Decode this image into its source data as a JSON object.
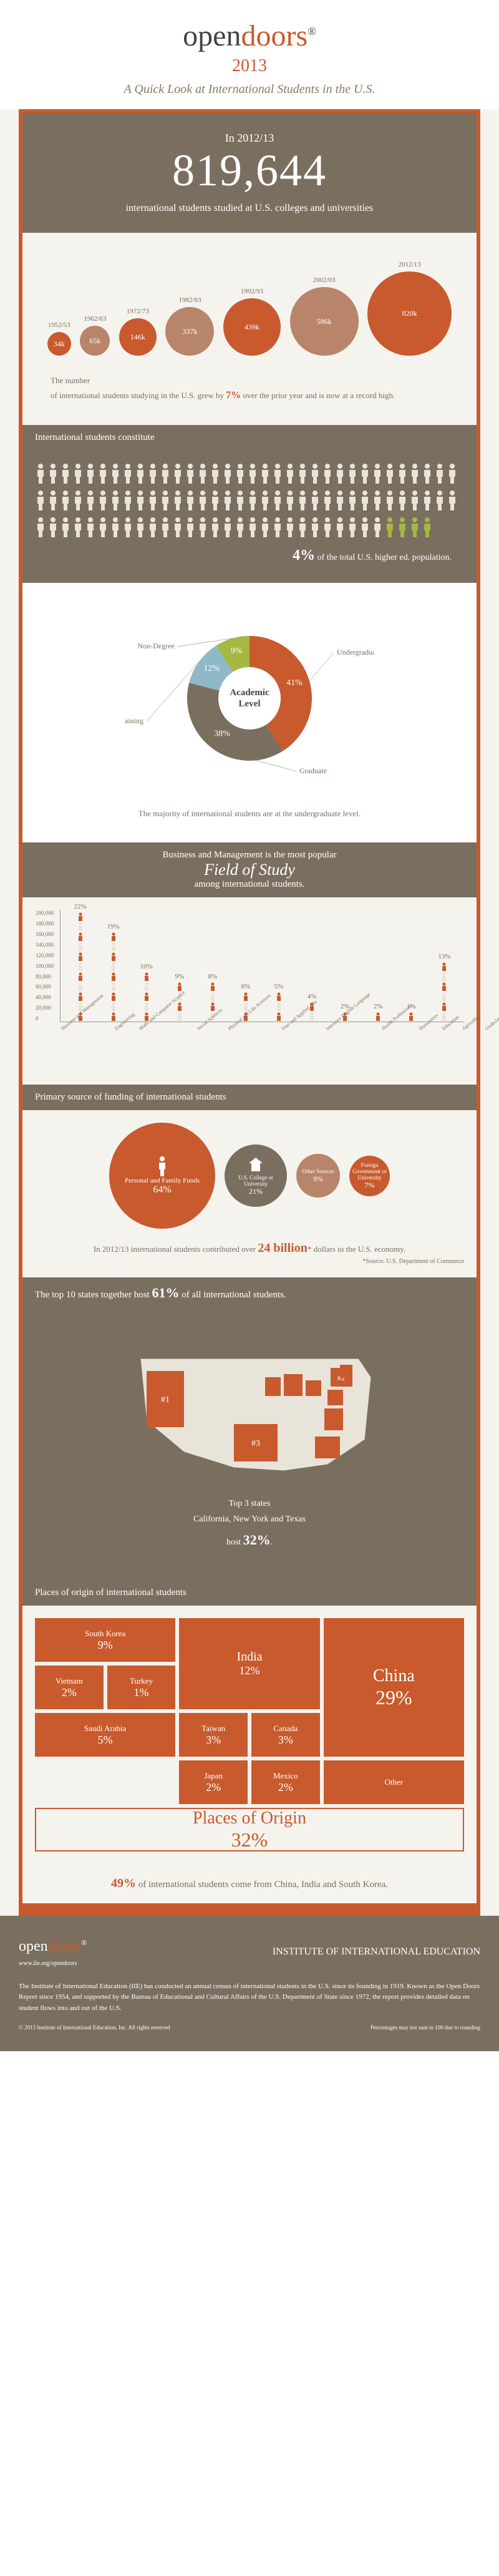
{
  "header": {
    "logo_open": "open",
    "logo_doors": "doors",
    "reg": "®",
    "year": "2013",
    "subtitle": "A Quick Look at International Students in the U.S."
  },
  "hero": {
    "year_label": "In 2012/13",
    "number": "819,644",
    "text": "international students studied at U.S. colleges and universities"
  },
  "bubbles": {
    "data": [
      {
        "year": "1952/53",
        "label": "34k",
        "size": 38,
        "color": "#c85a2d"
      },
      {
        "year": "1962/63",
        "label": "65k",
        "size": 48,
        "color": "#b8856b"
      },
      {
        "year": "1972/73",
        "label": "146k",
        "size": 60,
        "color": "#c85a2d"
      },
      {
        "year": "1982/83",
        "label": "337k",
        "size": 78,
        "color": "#b8856b"
      },
      {
        "year": "1992/93",
        "label": "439k",
        "size": 92,
        "color": "#c85a2d"
      },
      {
        "year": "2002/03",
        "label": "586k",
        "size": 110,
        "color": "#b8856b"
      },
      {
        "year": "2012/13",
        "label": "820k",
        "size": 135,
        "color": "#c85a2d"
      }
    ],
    "note_pre": "The number",
    "note_main": "of international students studying in the U.S. grew by ",
    "note_pct": "7%",
    "note_post": " over the prior year and is now at a record high."
  },
  "constitute": {
    "title": "International students constitute",
    "total_icons": 100,
    "highlighted": 4,
    "pct": "4%",
    "text": " of the total U.S. higher ed. population."
  },
  "donut": {
    "segments": [
      {
        "label": "Undergraduate",
        "value": 41,
        "color": "#c85a2d"
      },
      {
        "label": "Graduate",
        "value": 38,
        "color": "#7a6f5f"
      },
      {
        "label": "Optional Practical Training",
        "value": 12,
        "color": "#8fb8c9"
      },
      {
        "label": "Non-Degree",
        "value": 9,
        "color": "#a5b843"
      }
    ],
    "center": "Academic Level",
    "caption": "The majority of international students are at the undergraduate level."
  },
  "fields": {
    "title_pre": "Business and Management is the most popular",
    "title_main": "Field of Study",
    "title_post": "among international students.",
    "y_ticks": [
      "200,000",
      "180,000",
      "160,000",
      "140,000",
      "120,000",
      "100,000",
      "80,000",
      "60,000",
      "40,000",
      "20,000",
      "0"
    ],
    "bars": [
      {
        "label": "Business and Management",
        "pct": "22%",
        "count": 11
      },
      {
        "label": "Engineering",
        "pct": "19%",
        "count": 9
      },
      {
        "label": "Math. and Computer Science",
        "pct": "10%",
        "count": 5
      },
      {
        "label": "Social Sciences",
        "pct": "9%",
        "count": 4
      },
      {
        "label": "Physical and Life Sciences",
        "pct": "8%",
        "count": 4
      },
      {
        "label": "Fine and Applied Arts",
        "pct": "6%",
        "count": 3
      },
      {
        "label": "Intensive English Language",
        "pct": "5%",
        "count": 3
      },
      {
        "label": "Health Professions",
        "pct": "4%",
        "count": 2
      },
      {
        "label": "Humanities",
        "pct": "2%",
        "count": 1
      },
      {
        "label": "Education",
        "pct": "2%",
        "count": 1
      },
      {
        "label": "Agriculture",
        "pct": "1%",
        "count": 1
      },
      {
        "label": "Undeclared and other",
        "pct": "13%",
        "count": 6
      }
    ],
    "colors": [
      "#c85a2d",
      "#e8e4da"
    ]
  },
  "funding": {
    "title": "Primary source of funding of international students",
    "sources": [
      {
        "label": "Personal and Family Funds",
        "pct": "64%",
        "size": 170,
        "color": "#c85a2d"
      },
      {
        "label": "U.S. College or University",
        "pct": "21%",
        "size": 100,
        "color": "#7a6f5f"
      },
      {
        "label": "Other Sources",
        "pct": "9%",
        "size": 70,
        "color": "#b8856b"
      },
      {
        "label": "Foreign Government or University",
        "pct": "7%",
        "size": 65,
        "color": "#c85a2d"
      }
    ],
    "note_pre": "In 2012/13 international students contributed over ",
    "note_big": "24 billion",
    "note_post": "* dollars to the U.S. economy.",
    "source": "*Source: U.S. Department of Commerce"
  },
  "map": {
    "title_pre": "The top 10 states together host ",
    "title_pct": "61%",
    "title_post": " of all international students.",
    "top3_label": "Top 3 states",
    "top3_text": "California, New York and Texas",
    "top3_host": "host ",
    "top3_pct": "32%",
    "top3_dot": "."
  },
  "origin": {
    "title": "Places of origin of international students",
    "boxes": [
      {
        "name": "South Korea",
        "pct": "9%",
        "col": "1/3",
        "row": "1/2"
      },
      {
        "name": "India",
        "pct": "12%",
        "col": "3/5",
        "row": "1/3"
      },
      {
        "name": "China",
        "pct": "29%",
        "col": "5/7",
        "row": "1/4"
      },
      {
        "name": "Vietnam",
        "pct": "2%",
        "col": "1/2",
        "row": "2/3"
      },
      {
        "name": "Turkey",
        "pct": "1%",
        "col": "2/3",
        "row": "2/3"
      },
      {
        "name": "Taiwan",
        "pct": "3%",
        "col": "3/4",
        "row": "3/4"
      },
      {
        "name": "Canada",
        "pct": "3%",
        "col": "4/5",
        "row": "3/4"
      },
      {
        "name": "Saudi Arabia",
        "pct": "5%",
        "col": "1/3",
        "row": "3/4"
      },
      {
        "name": "Japan",
        "pct": "2%",
        "col": "3/4",
        "row": "4/5"
      },
      {
        "name": "Mexico",
        "pct": "2%",
        "col": "4/5",
        "row": "4/5"
      },
      {
        "name": "Other",
        "pct": "",
        "col": "5/7",
        "row": "4/5"
      },
      {
        "name": "Places of Origin",
        "pct": "32%",
        "col": "1/7",
        "row": "5/6",
        "outline": true
      }
    ],
    "stat_pct": "49%",
    "stat_text": " of international students come from China, India and South Korea."
  },
  "footer": {
    "logo1": "opendoors®",
    "logo2": "INSTITUTE OF INTERNATIONAL EDUCATION",
    "url": "www.iie.org/opendoors",
    "text": "The Institute of International Education (IIE) has conducted an annual census of international students in the U.S. since its founding in 1919. Known as the Open Doors Report since 1954, and supported by the Bureau of Educational and Cultural Affairs of the U.S. Department of State since 1972, the report provides detailed data on student flows into and out of the U.S.",
    "copyright": "© 2013 Institute of International Education, Inc. All rights reserved",
    "disclaimer": "Percentages may not sum to 100 due to rounding"
  }
}
